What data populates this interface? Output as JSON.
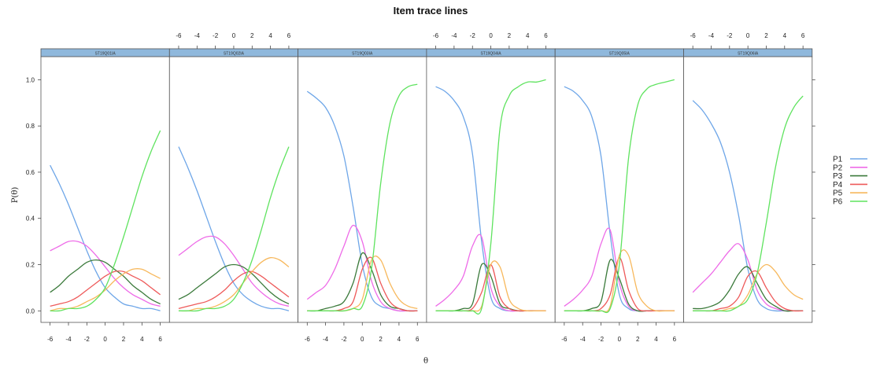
{
  "chart_data": {
    "type": "line",
    "title": "Item trace lines",
    "xlabel": "θ",
    "ylabel": "P(θ)",
    "xlim": [
      -7,
      7
    ],
    "ylim": [
      -0.05,
      1.1
    ],
    "x_ticks": [
      -6,
      -4,
      -2,
      0,
      2,
      4,
      6
    ],
    "x_tick_labels": [
      "-6",
      "-4",
      "-2",
      "0",
      "2",
      "4",
      "6"
    ],
    "y_ticks": [
      0.0,
      0.2,
      0.4,
      0.6,
      0.8,
      1.0
    ],
    "y_tick_labels": [
      "0.0",
      "0.2",
      "0.4",
      "0.6",
      "0.8",
      "1.0"
    ],
    "grid": false,
    "legend_position": "right",
    "legend": [
      {
        "name": "P1",
        "color": "#6ea6e8"
      },
      {
        "name": "P2",
        "color": "#ee6be8"
      },
      {
        "name": "P3",
        "color": "#3b7a3b"
      },
      {
        "name": "P4",
        "color": "#ee5a5a"
      },
      {
        "name": "P5",
        "color": "#f7b85c"
      },
      {
        "name": "P6",
        "color": "#5fe35f"
      }
    ],
    "x": [
      -6,
      -5,
      -4,
      -3,
      -2,
      -1,
      0,
      1,
      2,
      3,
      4,
      5,
      6
    ],
    "panels": [
      {
        "name": "ST19Q01IA",
        "series": [
          {
            "name": "P1",
            "values": [
              0.63,
              0.55,
              0.46,
              0.36,
              0.26,
              0.17,
              0.1,
              0.06,
              0.03,
              0.02,
              0.01,
              0.01,
              0.0
            ]
          },
          {
            "name": "P2",
            "values": [
              0.26,
              0.28,
              0.3,
              0.3,
              0.28,
              0.24,
              0.19,
              0.14,
              0.1,
              0.07,
              0.05,
              0.03,
              0.02
            ]
          },
          {
            "name": "P3",
            "values": [
              0.08,
              0.11,
              0.15,
              0.18,
              0.21,
              0.22,
              0.21,
              0.18,
              0.15,
              0.11,
              0.08,
              0.05,
              0.03
            ]
          },
          {
            "name": "P4",
            "values": [
              0.02,
              0.03,
              0.04,
              0.06,
              0.09,
              0.12,
              0.15,
              0.17,
              0.17,
              0.15,
              0.13,
              0.1,
              0.07
            ]
          },
          {
            "name": "P5",
            "values": [
              0.0,
              0.01,
              0.01,
              0.02,
              0.04,
              0.06,
              0.09,
              0.13,
              0.16,
              0.18,
              0.18,
              0.16,
              0.14
            ]
          },
          {
            "name": "P6",
            "values": [
              0.0,
              0.0,
              0.01,
              0.01,
              0.02,
              0.05,
              0.1,
              0.2,
              0.32,
              0.45,
              0.58,
              0.69,
              0.78
            ]
          }
        ]
      },
      {
        "name": "ST19Q02IA",
        "series": [
          {
            "name": "P1",
            "values": [
              0.71,
              0.62,
              0.52,
              0.41,
              0.3,
              0.2,
              0.12,
              0.07,
              0.04,
              0.02,
              0.01,
              0.01,
              0.0
            ]
          },
          {
            "name": "P2",
            "values": [
              0.24,
              0.27,
              0.3,
              0.32,
              0.32,
              0.29,
              0.24,
              0.18,
              0.12,
              0.08,
              0.05,
              0.03,
              0.02
            ]
          },
          {
            "name": "P3",
            "values": [
              0.05,
              0.07,
              0.1,
              0.13,
              0.16,
              0.19,
              0.2,
              0.19,
              0.16,
              0.12,
              0.08,
              0.05,
              0.03
            ]
          },
          {
            "name": "P4",
            "values": [
              0.01,
              0.02,
              0.03,
              0.04,
              0.06,
              0.09,
              0.13,
              0.16,
              0.17,
              0.15,
              0.12,
              0.09,
              0.06
            ]
          },
          {
            "name": "P5",
            "values": [
              0.0,
              0.0,
              0.01,
              0.01,
              0.02,
              0.04,
              0.07,
              0.12,
              0.17,
              0.21,
              0.23,
              0.22,
              0.19
            ]
          },
          {
            "name": "P6",
            "values": [
              0.0,
              0.0,
              0.0,
              0.01,
              0.01,
              0.02,
              0.05,
              0.12,
              0.22,
              0.35,
              0.49,
              0.61,
              0.71
            ]
          }
        ]
      },
      {
        "name": "ST19Q03IA",
        "series": [
          {
            "name": "P1",
            "values": [
              0.95,
              0.92,
              0.88,
              0.8,
              0.67,
              0.45,
              0.2,
              0.06,
              0.02,
              0.01,
              0.0,
              0.0,
              0.0
            ]
          },
          {
            "name": "P2",
            "values": [
              0.05,
              0.08,
              0.11,
              0.18,
              0.28,
              0.37,
              0.3,
              0.13,
              0.04,
              0.01,
              0.0,
              0.0,
              0.0
            ]
          },
          {
            "name": "P3",
            "values": [
              0.0,
              0.0,
              0.01,
              0.02,
              0.04,
              0.12,
              0.25,
              0.18,
              0.07,
              0.02,
              0.01,
              0.0,
              0.0
            ]
          },
          {
            "name": "P4",
            "values": [
              0.0,
              0.0,
              0.0,
              0.0,
              0.01,
              0.04,
              0.18,
              0.23,
              0.12,
              0.04,
              0.01,
              0.0,
              0.0
            ]
          },
          {
            "name": "P5",
            "values": [
              0.0,
              0.0,
              0.0,
              0.0,
              0.0,
              0.01,
              0.05,
              0.22,
              0.22,
              0.12,
              0.05,
              0.02,
              0.01
            ]
          },
          {
            "name": "P6",
            "values": [
              0.0,
              0.0,
              0.0,
              0.0,
              0.0,
              0.01,
              0.02,
              0.18,
              0.55,
              0.81,
              0.93,
              0.97,
              0.98
            ]
          }
        ]
      },
      {
        "name": "ST19Q04IA",
        "series": [
          {
            "name": "P1",
            "values": [
              0.97,
              0.95,
              0.91,
              0.84,
              0.68,
              0.3,
              0.06,
              0.01,
              0.0,
              0.0,
              0.0,
              0.0,
              0.0
            ]
          },
          {
            "name": "P2",
            "values": [
              0.02,
              0.05,
              0.09,
              0.15,
              0.28,
              0.32,
              0.1,
              0.02,
              0.0,
              0.0,
              0.0,
              0.0,
              0.0
            ]
          },
          {
            "name": "P3",
            "values": [
              0.0,
              0.0,
              0.0,
              0.01,
              0.03,
              0.2,
              0.15,
              0.03,
              0.01,
              0.0,
              0.0,
              0.0,
              0.0
            ]
          },
          {
            "name": "P4",
            "values": [
              0.0,
              0.0,
              0.0,
              0.0,
              0.01,
              0.08,
              0.2,
              0.06,
              0.01,
              0.0,
              0.0,
              0.0,
              0.0
            ]
          },
          {
            "name": "P5",
            "values": [
              0.0,
              0.0,
              0.0,
              0.0,
              0.0,
              0.02,
              0.2,
              0.19,
              0.05,
              0.01,
              0.0,
              0.0,
              0.0
            ]
          },
          {
            "name": "P6",
            "values": [
              0.0,
              0.0,
              0.0,
              0.0,
              0.0,
              0.01,
              0.29,
              0.79,
              0.93,
              0.97,
              0.99,
              0.99,
              1.0
            ]
          }
        ]
      },
      {
        "name": "ST19Q05IA",
        "series": [
          {
            "name": "P1",
            "values": [
              0.97,
              0.95,
              0.91,
              0.84,
              0.67,
              0.33,
              0.07,
              0.01,
              0.0,
              0.0,
              0.0,
              0.0,
              0.0
            ]
          },
          {
            "name": "P2",
            "values": [
              0.02,
              0.05,
              0.09,
              0.15,
              0.29,
              0.35,
              0.12,
              0.02,
              0.0,
              0.0,
              0.0,
              0.0,
              0.0
            ]
          },
          {
            "name": "P3",
            "values": [
              0.0,
              0.0,
              0.0,
              0.01,
              0.04,
              0.22,
              0.14,
              0.03,
              0.0,
              0.0,
              0.0,
              0.0,
              0.0
            ]
          },
          {
            "name": "P4",
            "values": [
              0.0,
              0.0,
              0.0,
              0.0,
              0.01,
              0.07,
              0.23,
              0.09,
              0.01,
              0.0,
              0.0,
              0.0,
              0.0
            ]
          },
          {
            "name": "P5",
            "values": [
              0.0,
              0.0,
              0.0,
              0.0,
              0.0,
              0.02,
              0.24,
              0.24,
              0.08,
              0.02,
              0.0,
              0.0,
              0.0
            ]
          },
          {
            "name": "P6",
            "values": [
              0.0,
              0.0,
              0.0,
              0.0,
              0.0,
              0.01,
              0.2,
              0.66,
              0.89,
              0.96,
              0.98,
              0.99,
              1.0
            ]
          }
        ]
      },
      {
        "name": "ST19Q06IA",
        "series": [
          {
            "name": "P1",
            "values": [
              0.91,
              0.87,
              0.81,
              0.73,
              0.6,
              0.41,
              0.18,
              0.05,
              0.01,
              0.0,
              0.0,
              0.0,
              0.0
            ]
          },
          {
            "name": "P2",
            "values": [
              0.08,
              0.12,
              0.16,
              0.21,
              0.26,
              0.29,
              0.22,
              0.09,
              0.03,
              0.01,
              0.0,
              0.0,
              0.0
            ]
          },
          {
            "name": "P3",
            "values": [
              0.01,
              0.01,
              0.02,
              0.04,
              0.09,
              0.16,
              0.19,
              0.12,
              0.05,
              0.02,
              0.0,
              0.0,
              0.0
            ]
          },
          {
            "name": "P4",
            "values": [
              0.0,
              0.0,
              0.0,
              0.01,
              0.02,
              0.06,
              0.15,
              0.17,
              0.1,
              0.04,
              0.01,
              0.0,
              0.0
            ]
          },
          {
            "name": "P5",
            "values": [
              0.0,
              0.0,
              0.0,
              0.0,
              0.01,
              0.02,
              0.07,
              0.16,
              0.2,
              0.17,
              0.11,
              0.07,
              0.05
            ]
          },
          {
            "name": "P6",
            "values": [
              0.0,
              0.0,
              0.0,
              0.0,
              0.0,
              0.02,
              0.05,
              0.16,
              0.38,
              0.62,
              0.79,
              0.88,
              0.93
            ]
          }
        ]
      }
    ]
  }
}
